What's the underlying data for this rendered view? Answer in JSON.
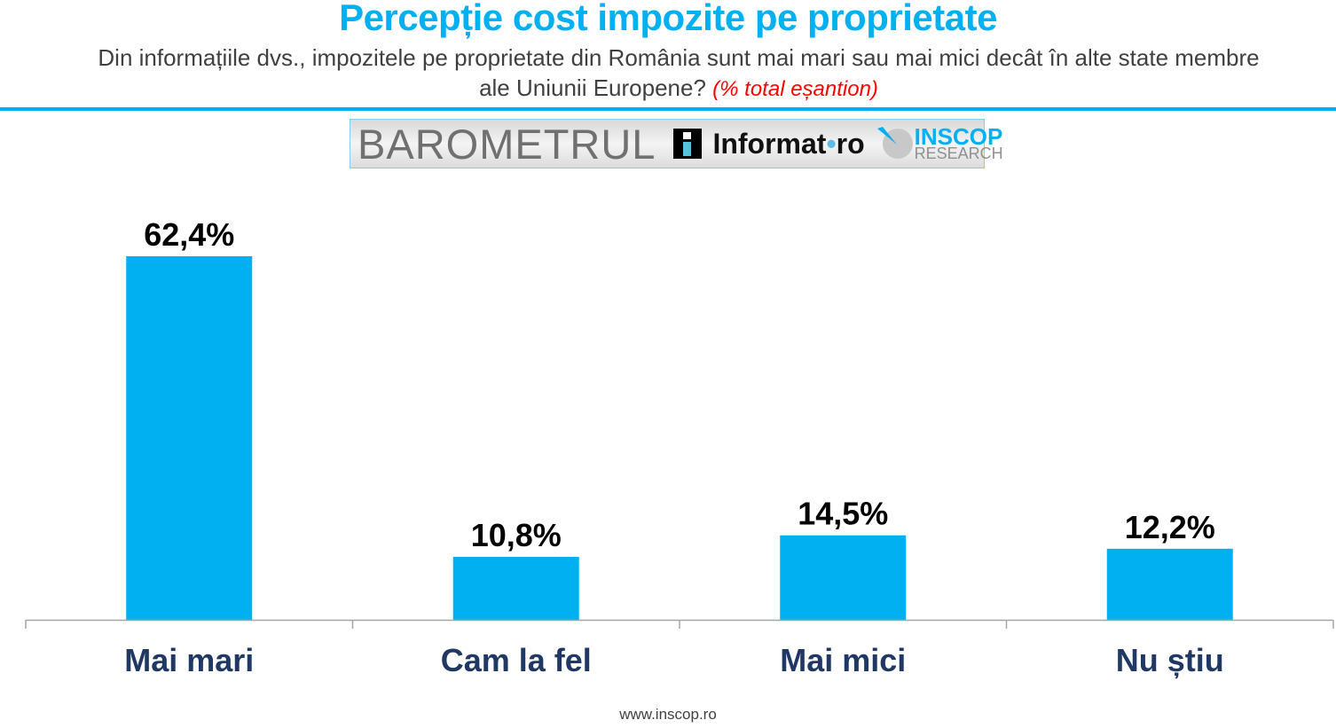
{
  "title": "Percepție cost impozite pe proprietate",
  "subtitle": "Din informațiile dvs., impozitele pe proprietate din România sunt mai mari sau mai mici decât în alte state membre ale Uniunii Europene?",
  "subtitle_note": "(% total eșantion)",
  "banner": {
    "barometrul": "BAROMETRUL",
    "informat": "Informat",
    "informat_dot": "•",
    "informat_tld": "ro",
    "inscop": "INSCOP",
    "research": "RESEARCH"
  },
  "footer": "www.inscop.ro",
  "colors": {
    "bar": "#00b0f0",
    "title": "#00b0f0",
    "note": "#ff0000",
    "category": "#1f3864"
  },
  "chart_data": {
    "type": "bar",
    "categories": [
      "Mai mari",
      "Cam la fel",
      "Mai mici",
      "Nu știu"
    ],
    "values": [
      62.4,
      10.8,
      14.5,
      12.2
    ],
    "data_labels": [
      "62,4%",
      "10,8%",
      "14,5%",
      "12,2%"
    ],
    "ylim": [
      0,
      62.4
    ],
    "grid": false,
    "legend": "none"
  }
}
